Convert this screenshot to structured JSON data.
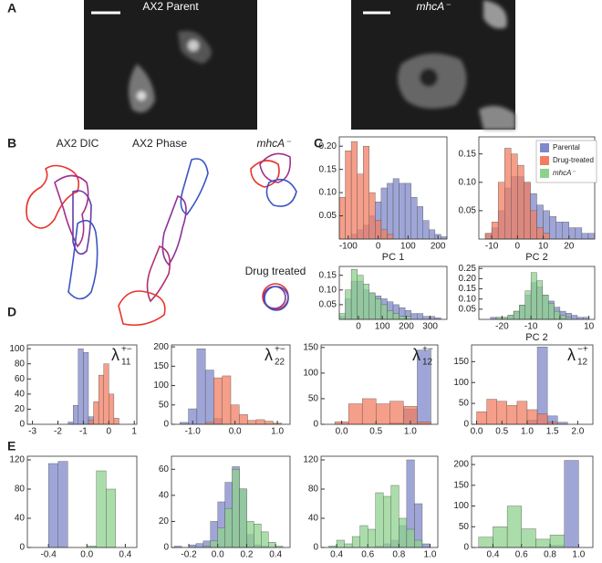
{
  "panel_labels": [
    "A",
    "B",
    "C",
    "D",
    "E"
  ],
  "image_titles": [
    "AX2 Parent",
    "mhcA⁻"
  ],
  "outline_titles": [
    "AX2 DIC",
    "AX2 Phase",
    "mhcA⁻",
    "Drug treated"
  ],
  "legend": [
    {
      "name": "Parental",
      "color": "#7f88c9"
    },
    {
      "name": "Drug-treated",
      "color": "#f27d62"
    },
    {
      "name": "mhcA⁻",
      "color": "#8dd18e"
    }
  ],
  "chart_data": [
    {
      "type": "histogram",
      "xlabel": "PC 1",
      "bins": [
        -130,
        -110,
        -90,
        -70,
        -50,
        -30,
        -10,
        10,
        30,
        50,
        70,
        90,
        110,
        130,
        150,
        170,
        190,
        210,
        230
      ],
      "series": [
        {
          "color": "#7f88c9",
          "values": [
            0,
            0,
            0.01,
            0.02,
            0.03,
            0.05,
            0.08,
            0.11,
            0.12,
            0.13,
            0.12,
            0.12,
            0.09,
            0.07,
            0.04,
            0.02,
            0.01,
            0.005
          ]
        },
        {
          "color": "#f27d62",
          "values": [
            0.09,
            0.19,
            0.21,
            0.14,
            0.2,
            0.1,
            0.04,
            0.02,
            0.01,
            0,
            0,
            0,
            0,
            0,
            0,
            0,
            0,
            0
          ]
        }
      ],
      "xlim": [
        -130,
        230
      ],
      "xticks": [
        -100,
        0,
        100,
        200
      ],
      "ylim": [
        0,
        0.22
      ],
      "yticks": [
        {
          "value": 0.05,
          "label": "0.05"
        },
        {
          "value": 0.1,
          "label": "0.10"
        },
        {
          "value": 0.15,
          "label": "0.15"
        },
        {
          "value": 0.2,
          "label": "0.20"
        }
      ]
    },
    {
      "type": "histogram",
      "xlabel": "PC 2",
      "bins": [
        -15,
        -12.5,
        -10,
        -7.5,
        -5,
        -2.5,
        0,
        2.5,
        5,
        7.5,
        10,
        12.5,
        15,
        17.5,
        20,
        22.5,
        25,
        27.5,
        30
      ],
      "series": [
        {
          "color": "#7f88c9",
          "values": [
            0,
            0.01,
            0.02,
            0.05,
            0.09,
            0.11,
            0.11,
            0.1,
            0.08,
            0.06,
            0.05,
            0.04,
            0.03,
            0.03,
            0.02,
            0.02,
            0.01,
            0.01
          ]
        },
        {
          "color": "#f27d62",
          "values": [
            0,
            0.01,
            0.03,
            0.1,
            0.16,
            0.15,
            0.13,
            0.1,
            0.05,
            0.02,
            0.01,
            0,
            0,
            0,
            0,
            0,
            0,
            0
          ]
        }
      ],
      "xlim": [
        -15,
        30
      ],
      "xticks": [
        -10,
        0,
        10,
        20
      ],
      "ylim": [
        0,
        0.18
      ],
      "yticks": [
        {
          "value": 0.05,
          "label": "0.05"
        },
        {
          "value": 0.1,
          "label": "0.10"
        },
        {
          "value": 0.15,
          "label": "0.15"
        }
      ]
    },
    {
      "type": "histogram",
      "bins": [
        -80,
        -55,
        -30,
        -5,
        20,
        45,
        70,
        95,
        120,
        145,
        170,
        195,
        220,
        245,
        270,
        295,
        320,
        345,
        370
      ],
      "series": [
        {
          "color": "#7f88c9",
          "values": [
            0.01,
            0.07,
            0.13,
            0.13,
            0.1,
            0.09,
            0.08,
            0.07,
            0.06,
            0.05,
            0.04,
            0.03,
            0.02,
            0.02,
            0.01,
            0.01,
            0.005,
            0
          ]
        },
        {
          "color": "#8dd18e",
          "values": [
            0.02,
            0.1,
            0.17,
            0.15,
            0.12,
            0.09,
            0.07,
            0.05,
            0.03,
            0.02,
            0.01,
            0.01,
            0,
            0,
            0,
            0,
            0,
            0
          ]
        }
      ],
      "xlim": [
        -80,
        370
      ],
      "xticks": [
        0,
        100,
        200,
        300
      ],
      "ylim": [
        0,
        0.18
      ],
      "yticks": [
        {
          "value": 0.05,
          "label": "0.05"
        },
        {
          "value": 0.1,
          "label": "0.10"
        },
        {
          "value": 0.15,
          "label": "0.15"
        }
      ]
    },
    {
      "type": "histogram",
      "xlabel": "PC 2",
      "bins": [
        -28,
        -26,
        -24,
        -22,
        -20,
        -18,
        -16,
        -14,
        -12,
        -10,
        -8,
        -6,
        -4,
        -2,
        0,
        2,
        4,
        6,
        8,
        10,
        12
      ],
      "series": [
        {
          "color": "#7f88c9",
          "values": [
            0,
            0,
            0.01,
            0.01,
            0.01,
            0.02,
            0.04,
            0.07,
            0.12,
            0.18,
            0.16,
            0.12,
            0.09,
            0.06,
            0.04,
            0.03,
            0.02,
            0.01,
            0.01,
            0
          ]
        },
        {
          "color": "#8dd18e",
          "values": [
            0,
            0,
            0,
            0.01,
            0.01,
            0.02,
            0.04,
            0.07,
            0.14,
            0.23,
            0.19,
            0.12,
            0.08,
            0.04,
            0.02,
            0.01,
            0,
            0,
            0,
            0
          ]
        }
      ],
      "xlim": [
        -28,
        12
      ],
      "xticks": [
        -20,
        -10,
        0,
        10
      ],
      "ylim": [
        0,
        0.26
      ],
      "yticks": [
        {
          "value": 0.05,
          "label": "0.05"
        },
        {
          "value": 0.1,
          "label": "0.10"
        },
        {
          "value": 0.15,
          "label": "0.15"
        },
        {
          "value": 0.2,
          "label": "0.20"
        },
        {
          "value": 0.25,
          "label": "0.25"
        }
      ]
    },
    {
      "type": "histogram",
      "title": {
        "symbol": "λ",
        "sup": "+−",
        "sub": "11"
      },
      "bins": [
        -1.6,
        -1.4,
        -1.2,
        -1.0,
        -0.8,
        -0.6,
        -0.4,
        -0.2,
        0,
        0.2,
        0.4
      ],
      "series": [
        {
          "color": "#7f88c9",
          "values": [
            3,
            25,
            100,
            95,
            10,
            0,
            0,
            0,
            0,
            0
          ]
        },
        {
          "color": "#f27d62",
          "values": [
            0,
            0,
            0,
            0,
            5,
            30,
            65,
            80,
            40,
            8
          ]
        }
      ],
      "xlim": [
        -3.2,
        1.1
      ],
      "xticks": [
        -3,
        -2,
        -1,
        0,
        1
      ],
      "ylim": [
        0,
        105
      ],
      "yticks": [
        0,
        20,
        40,
        60,
        80,
        100
      ]
    },
    {
      "type": "histogram",
      "title": {
        "symbol": "λ",
        "sup": "+−",
        "sub": "22"
      },
      "bins": [
        -1.3,
        -1.1,
        -0.9,
        -0.7,
        -0.5,
        -0.3,
        -0.1,
        0.1,
        0.3,
        0.5,
        0.7,
        0.9,
        1.1
      ],
      "series": [
        {
          "color": "#7f88c9",
          "values": [
            5,
            40,
            195,
            140,
            15,
            0,
            0,
            0,
            0,
            0,
            0,
            0
          ]
        },
        {
          "color": "#f27d62",
          "values": [
            0,
            0,
            0,
            5,
            120,
            125,
            50,
            25,
            10,
            12,
            8,
            3
          ]
        }
      ],
      "xlim": [
        -1.5,
        1.3
      ],
      "xticks": [
        {
          "value": -1,
          "label": "-1.0"
        },
        {
          "value": 0,
          "label": "0.0"
        },
        {
          "value": 1,
          "label": "1.0"
        }
      ],
      "ylim": [
        0,
        205
      ],
      "yticks": [
        0,
        50,
        100,
        150,
        200
      ]
    },
    {
      "type": "histogram",
      "title": {
        "symbol": "λ",
        "sup": "+−",
        "sub": "12"
      },
      "bins": [
        -0.1,
        0.1,
        0.3,
        0.5,
        0.7,
        0.9,
        1.1,
        1.3
      ],
      "series": [
        {
          "color": "#7f88c9",
          "values": [
            0,
            0,
            0,
            0,
            3,
            30,
            145
          ]
        },
        {
          "color": "#f27d62",
          "values": [
            5,
            40,
            50,
            40,
            45,
            35,
            5
          ]
        }
      ],
      "xlim": [
        -0.3,
        1.4
      ],
      "xticks": [
        {
          "value": 0,
          "label": "0.0"
        },
        {
          "value": 0.5,
          "label": "0.5"
        },
        {
          "value": 1,
          "label": "1.0"
        }
      ],
      "ylim": [
        0,
        155
      ],
      "yticks": [
        0,
        50,
        100,
        150
      ]
    },
    {
      "type": "histogram",
      "title": {
        "symbol": "λ",
        "sup": "−+",
        "sub": "12"
      },
      "bins": [
        0,
        0.2,
        0.4,
        0.6,
        0.8,
        1.0,
        1.2,
        1.4,
        1.6,
        1.8
      ],
      "series": [
        {
          "color": "#7f88c9",
          "values": [
            0,
            0,
            0,
            0,
            0,
            10,
            185,
            20,
            5
          ]
        },
        {
          "color": "#f27d62",
          "values": [
            30,
            60,
            55,
            45,
            55,
            35,
            25,
            5,
            0
          ]
        }
      ],
      "xlim": [
        -0.1,
        2.3
      ],
      "xticks": [
        {
          "value": 0,
          "label": "0.0"
        },
        {
          "value": 0.5,
          "label": "0.5"
        },
        {
          "value": 1,
          "label": "1.0"
        },
        {
          "value": 1.5,
          "label": "1.5"
        },
        {
          "value": 2,
          "label": "2.0"
        }
      ],
      "ylim": [
        0,
        190
      ],
      "yticks": [
        0,
        50,
        100,
        150
      ]
    },
    {
      "type": "histogram",
      "bins": [
        -0.5,
        -0.4,
        -0.3,
        -0.2,
        -0.1,
        0,
        0.1,
        0.2,
        0.3,
        0.4
      ],
      "series": [
        {
          "color": "#7f88c9",
          "values": [
            0,
            115,
            118,
            0,
            0,
            0,
            0,
            0,
            0
          ]
        },
        {
          "color": "#8dd18e",
          "values": [
            0,
            0,
            0,
            0,
            0,
            2,
            105,
            80,
            0
          ]
        }
      ],
      "xlim": [
        -0.62,
        0.52
      ],
      "xticks": [
        {
          "value": -0.4,
          "label": "-0.4"
        },
        {
          "value": 0,
          "label": "0.0"
        },
        {
          "value": 0.4,
          "label": "0.4"
        }
      ],
      "ylim": [
        0,
        125
      ],
      "yticks": [
        0,
        40,
        80,
        120
      ]
    },
    {
      "type": "histogram",
      "bins": [
        -0.3,
        -0.25,
        -0.2,
        -0.15,
        -0.1,
        -0.05,
        0,
        0.05,
        0.1,
        0.15,
        0.2,
        0.25,
        0.3,
        0.35,
        0.4,
        0.45
      ],
      "series": [
        {
          "color": "#7f88c9",
          "values": [
            1,
            0,
            2,
            3,
            5,
            20,
            35,
            50,
            62,
            45,
            10,
            2,
            1,
            0,
            0
          ]
        },
        {
          "color": "#8dd18e",
          "values": [
            0,
            0,
            0,
            0,
            1,
            5,
            15,
            30,
            60,
            45,
            20,
            18,
            12,
            4,
            1
          ]
        }
      ],
      "xlim": [
        -0.32,
        0.5
      ],
      "xticks": [
        {
          "value": -0.2,
          "label": "-0.2"
        },
        {
          "value": 0,
          "label": "0.0"
        },
        {
          "value": 0.2,
          "label": "0.2"
        },
        {
          "value": 0.4,
          "label": "0.4"
        }
      ],
      "ylim": [
        0,
        70
      ],
      "yticks": [
        0,
        20,
        40,
        60
      ]
    },
    {
      "type": "histogram",
      "bins": [
        0.35,
        0.4,
        0.45,
        0.5,
        0.55,
        0.6,
        0.65,
        0.7,
        0.75,
        0.8,
        0.85,
        0.9,
        0.95,
        1.0
      ],
      "series": [
        {
          "color": "#7f88c9",
          "values": [
            0,
            0,
            0,
            0,
            0,
            0,
            2,
            5,
            10,
            30,
            120,
            60,
            5
          ]
        },
        {
          "color": "#8dd18e",
          "values": [
            2,
            10,
            5,
            15,
            30,
            25,
            75,
            70,
            85,
            40,
            25,
            10,
            0
          ]
        }
      ],
      "xlim": [
        0.3,
        1.05
      ],
      "xticks": [
        {
          "value": 0.4,
          "label": "0.4"
        },
        {
          "value": 0.6,
          "label": "0.6"
        },
        {
          "value": 0.8,
          "label": "0.8"
        },
        {
          "value": 1,
          "label": "1.0"
        }
      ],
      "ylim": [
        0,
        125
      ],
      "yticks": [
        0,
        40,
        80,
        120
      ]
    },
    {
      "type": "histogram",
      "bins": [
        0.3,
        0.4,
        0.5,
        0.6,
        0.7,
        0.8,
        0.9,
        1.0
      ],
      "series": [
        {
          "color": "#7f88c9",
          "values": [
            0,
            0,
            0,
            0,
            0,
            5,
            210
          ]
        },
        {
          "color": "#8dd18e",
          "values": [
            25,
            50,
            100,
            45,
            20,
            30,
            0
          ]
        }
      ],
      "xlim": [
        0.25,
        1.1
      ],
      "xticks": [
        {
          "value": 0.4,
          "label": "0.4"
        },
        {
          "value": 0.6,
          "label": "0.6"
        },
        {
          "value": 0.8,
          "label": "0.8"
        },
        {
          "value": 1,
          "label": "1.0"
        }
      ],
      "ylim": [
        0,
        220
      ],
      "yticks": [
        0,
        50,
        100,
        150,
        200
      ]
    }
  ]
}
